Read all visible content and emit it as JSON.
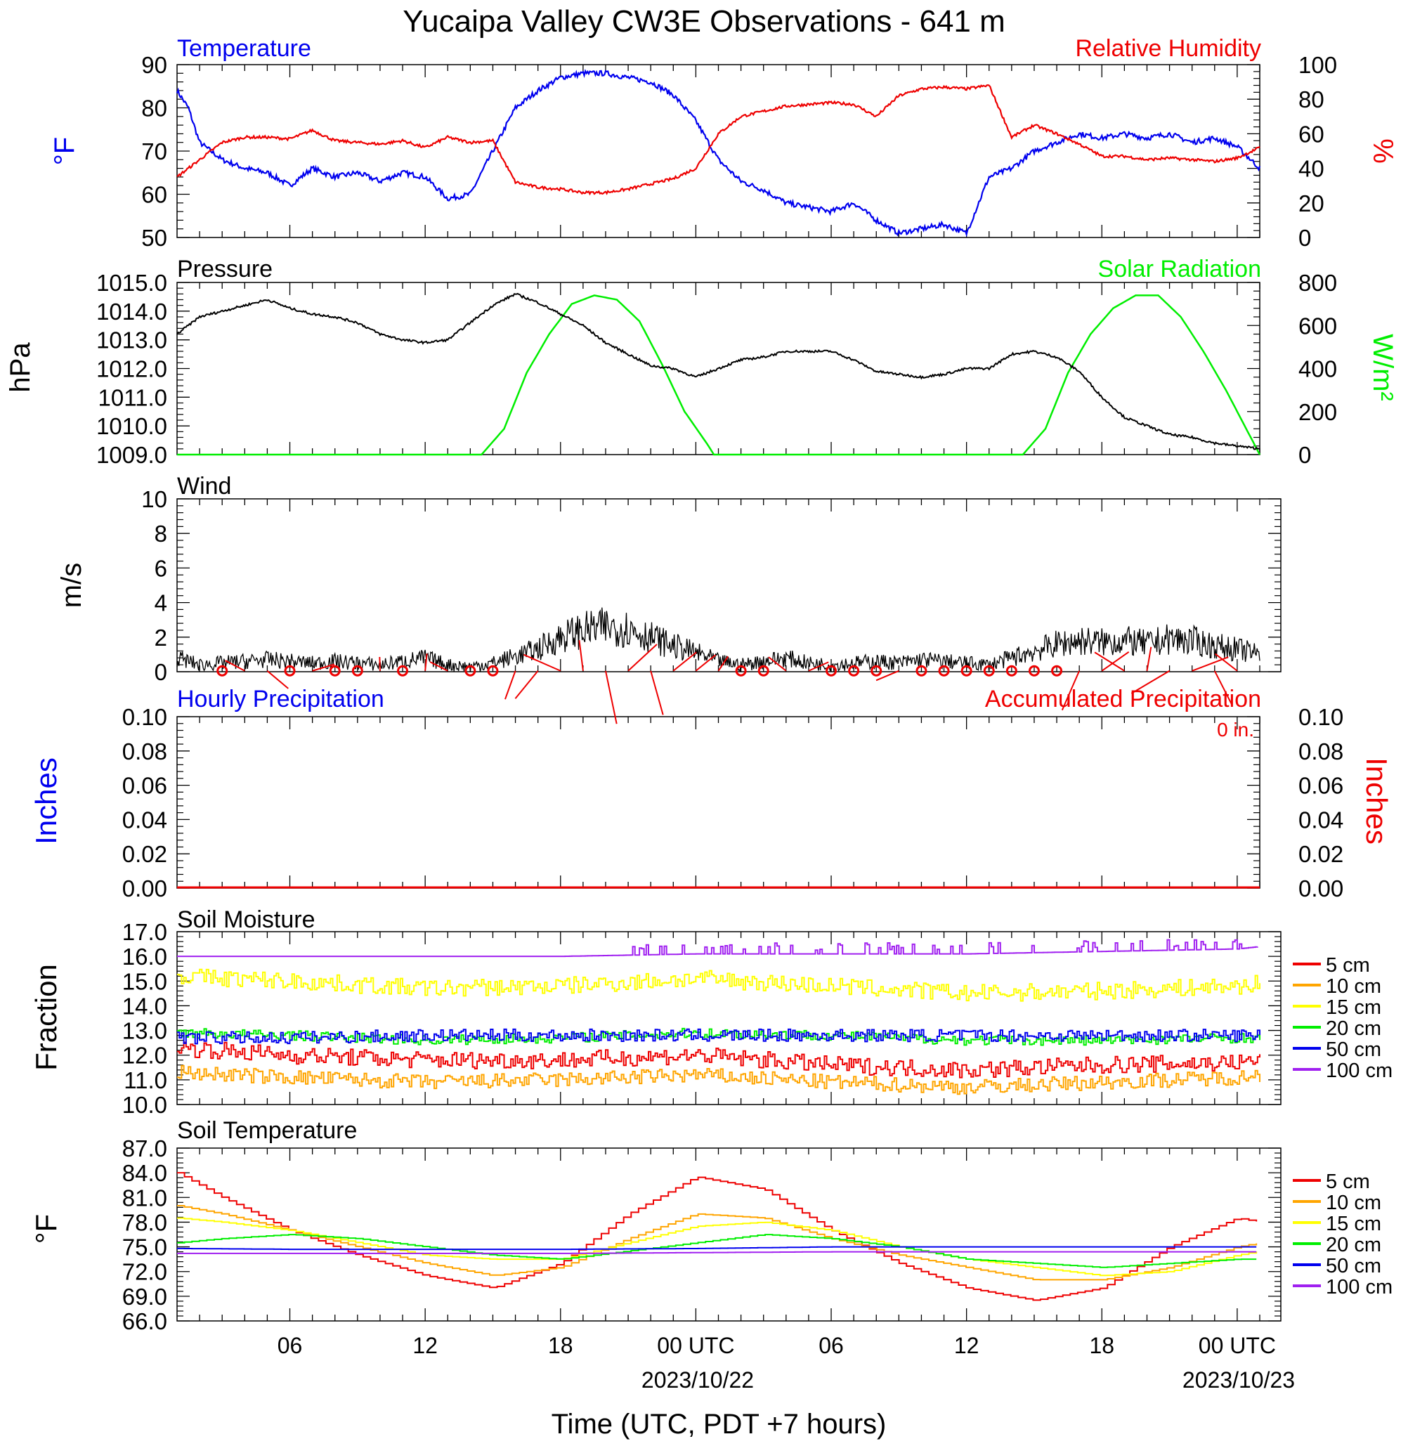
{
  "title": "Yucaipa Valley CW3E Observations - 641 m",
  "xaxis": {
    "title": "Time (UTC, PDT +7 hours)",
    "ticks": [
      "06",
      "12",
      "18",
      "00 UTC",
      "06",
      "12",
      "18",
      "00 UTC"
    ],
    "dates": [
      "2023/10/22",
      "2023/10/23"
    ]
  },
  "colors": {
    "blue": "#0000ee",
    "red": "#ee0000",
    "green": "#00ee00",
    "orange": "#ffa500",
    "yellow": "#ffff00",
    "purple": "#a020f0",
    "black": "#000000"
  },
  "panels": {
    "temp_rh": {
      "title_left": "Temperature",
      "title_right": "Relative Humidity",
      "ylabel_left": "°F",
      "ylabel_right": "%",
      "yticks_left": [
        "90",
        "80",
        "70",
        "60",
        "50"
      ],
      "yticks_right": [
        "100",
        "80",
        "60",
        "40",
        "20",
        "0"
      ]
    },
    "pressure": {
      "title_left": "Pressure",
      "title_right": "Solar Radiation",
      "ylabel_left": "hPa",
      "ylabel_right": "W/m²",
      "yticks_left": [
        "1015.0",
        "1014.0",
        "1013.0",
        "1012.0",
        "1011.0",
        "1010.0",
        "1009.0"
      ],
      "yticks_right": [
        "800",
        "600",
        "400",
        "200",
        "0"
      ]
    },
    "wind": {
      "title_left": "Wind",
      "ylabel_left": "m/s",
      "yticks_left": [
        "10",
        "8",
        "6",
        "4",
        "2",
        "0"
      ]
    },
    "precip": {
      "title_left": "Hourly Precipitation",
      "title_right": "Accumulated Precipitation",
      "accum_label": "0 in.",
      "ylabel_left": "Inches",
      "ylabel_right": "Inches",
      "yticks_left": [
        "0.10",
        "0.08",
        "0.06",
        "0.04",
        "0.02",
        "0.00"
      ],
      "yticks_right": [
        "0.10",
        "0.08",
        "0.06",
        "0.04",
        "0.02",
        "0.00"
      ]
    },
    "soil_moisture": {
      "title_left": "Soil Moisture",
      "ylabel_left": "Fraction",
      "yticks_left": [
        "17.0",
        "16.0",
        "15.0",
        "14.0",
        "13.0",
        "12.0",
        "11.0",
        "10.0"
      ],
      "legend": [
        "5 cm",
        "10 cm",
        "15 cm",
        "20 cm",
        "50 cm",
        "100 cm"
      ]
    },
    "soil_temp": {
      "title_left": "Soil Temperature",
      "ylabel_left": "°F",
      "yticks_left": [
        "87.0",
        "84.0",
        "81.0",
        "78.0",
        "75.0",
        "72.0",
        "69.0",
        "66.0"
      ],
      "legend": [
        "5 cm",
        "10 cm",
        "15 cm",
        "20 cm",
        "50 cm",
        "100 cm"
      ]
    }
  },
  "chart_data": [
    {
      "type": "line",
      "title": "Temperature / Relative Humidity",
      "x_unit": "hours since 2023/10/21 00 UTC",
      "xlim": [
        1.0,
        49.0
      ],
      "series": [
        {
          "name": "Temperature",
          "axis": "left",
          "unit": "°F",
          "ylim": [
            50,
            90
          ],
          "x": [
            1,
            1.5,
            2,
            3,
            4,
            5,
            6,
            7,
            8,
            9,
            10,
            11,
            12,
            13,
            14,
            15,
            16,
            17,
            18,
            19,
            20,
            21,
            22,
            23,
            24,
            25,
            26,
            27,
            28,
            29,
            30,
            31,
            32,
            33,
            34,
            35,
            36,
            37,
            38,
            39,
            40,
            41,
            42,
            43,
            44,
            45,
            46,
            47,
            48,
            49
          ],
          "y": [
            84,
            80,
            72,
            68,
            66,
            65,
            62,
            66,
            64,
            65,
            63,
            65,
            64,
            59,
            60,
            70,
            80,
            84,
            87,
            88,
            88,
            87,
            86,
            83,
            77,
            68,
            63,
            61,
            58,
            57,
            56,
            58,
            54,
            51,
            52,
            53,
            51,
            64,
            66,
            70,
            72,
            74,
            73,
            74,
            73,
            74,
            72,
            73,
            71,
            66
          ]
        },
        {
          "name": "Relative Humidity",
          "axis": "right",
          "unit": "%",
          "ylim": [
            0,
            100
          ],
          "x": [
            1,
            2,
            3,
            4,
            5,
            6,
            7,
            8,
            9,
            10,
            11,
            12,
            13,
            14,
            15,
            16,
            17,
            18,
            19,
            20,
            21,
            22,
            23,
            24,
            25,
            26,
            27,
            28,
            29,
            30,
            31,
            32,
            33,
            34,
            35,
            36,
            37,
            38,
            39,
            40,
            41,
            42,
            43,
            44,
            45,
            46,
            47,
            48,
            49
          ],
          "y": [
            35,
            45,
            55,
            58,
            58,
            57,
            62,
            56,
            55,
            54,
            56,
            52,
            58,
            55,
            56,
            32,
            29,
            28,
            26,
            26,
            28,
            31,
            34,
            40,
            60,
            70,
            73,
            76,
            77,
            78,
            77,
            70,
            82,
            86,
            87,
            86,
            88,
            58,
            65,
            60,
            54,
            47,
            47,
            45,
            46,
            45,
            44,
            46,
            52
          ]
        }
      ]
    },
    {
      "type": "line",
      "title": "Pressure / Solar Radiation",
      "x_unit": "hours since 2023/10/21 00 UTC",
      "xlim": [
        1.0,
        49.0
      ],
      "series": [
        {
          "name": "Pressure",
          "axis": "left",
          "unit": "hPa",
          "ylim": [
            1009,
            1015
          ],
          "x": [
            1,
            2,
            3,
            4,
            5,
            6,
            7,
            8,
            9,
            10,
            11,
            12,
            13,
            14,
            15,
            16,
            17,
            18,
            19,
            20,
            21,
            22,
            23,
            24,
            25,
            26,
            27,
            28,
            29,
            30,
            31,
            32,
            33,
            34,
            35,
            36,
            37,
            38,
            39,
            40,
            41,
            42,
            43,
            44,
            45,
            46,
            47,
            48,
            49
          ],
          "y": [
            1013.2,
            1013.8,
            1014.0,
            1014.2,
            1014.4,
            1014.1,
            1013.9,
            1013.8,
            1013.6,
            1013.2,
            1013.0,
            1012.9,
            1013.0,
            1013.6,
            1014.2,
            1014.6,
            1014.3,
            1013.9,
            1013.5,
            1012.9,
            1012.5,
            1012.1,
            1012.0,
            1011.7,
            1012.0,
            1012.3,
            1012.4,
            1012.6,
            1012.6,
            1012.6,
            1012.3,
            1011.9,
            1011.8,
            1011.7,
            1011.8,
            1012.0,
            1012.0,
            1012.5,
            1012.6,
            1012.4,
            1011.9,
            1011.0,
            1010.3,
            1010.0,
            1009.7,
            1009.6,
            1009.4,
            1009.3,
            1009.2
          ]
        },
        {
          "name": "Solar Radiation",
          "axis": "right",
          "unit": "W/m²",
          "ylim": [
            0,
            800
          ],
          "x": [
            1,
            14.5,
            15.5,
            16.5,
            17.5,
            18.5,
            19.5,
            20.5,
            21.5,
            22.5,
            23.5,
            24.5,
            24.8,
            25,
            38.5,
            39.5,
            40.5,
            41.5,
            42.5,
            43.5,
            44.5,
            45.5,
            46.5,
            47.5,
            48.5,
            49
          ],
          "y": [
            0,
            0,
            120,
            380,
            560,
            700,
            740,
            720,
            620,
            420,
            200,
            50,
            0,
            0,
            0,
            120,
            380,
            560,
            680,
            740,
            740,
            640,
            480,
            300,
            100,
            0
          ]
        }
      ]
    },
    {
      "type": "line",
      "title": "Wind",
      "x_unit": "hours since 2023/10/21 00 UTC",
      "xlim": [
        1.0,
        49.0
      ],
      "ylim": [
        0,
        10
      ],
      "series": [
        {
          "name": "Wind speed",
          "unit": "m/s",
          "x": [
            1,
            2,
            3,
            4,
            5,
            6,
            7,
            8,
            9,
            10,
            11,
            12,
            13,
            14,
            15,
            16,
            17,
            18,
            19,
            20,
            21,
            22,
            23,
            24,
            25,
            26,
            27,
            28,
            29,
            30,
            31,
            32,
            33,
            34,
            35,
            36,
            37,
            38,
            39,
            40,
            41,
            42,
            43,
            44,
            45,
            46,
            47,
            48,
            49
          ],
          "y": [
            0.8,
            0.4,
            0.5,
            0.6,
            0.7,
            0.6,
            0.5,
            0.6,
            0.5,
            0.4,
            0.6,
            0.8,
            0.4,
            0.3,
            0.5,
            0.9,
            1.3,
            2.0,
            2.4,
            2.6,
            2.5,
            2.0,
            1.5,
            1.1,
            0.6,
            0.4,
            0.6,
            0.8,
            0.5,
            0.4,
            0.5,
            0.6,
            0.5,
            0.7,
            0.6,
            0.5,
            0.4,
            0.8,
            1.2,
            1.6,
            1.8,
            1.7,
            1.8,
            1.6,
            1.9,
            1.8,
            1.5,
            1.3,
            1.0
          ]
        }
      ]
    },
    {
      "type": "bar",
      "title": "Hourly / Accumulated Precipitation",
      "x_unit": "hours since 2023/10/21 00 UTC",
      "xlim": [
        1.0,
        49.0
      ],
      "ylim": [
        0,
        0.1
      ],
      "series": [
        {
          "name": "Hourly Precipitation",
          "unit": "in",
          "values": []
        },
        {
          "name": "Accumulated Precipitation",
          "unit": "in",
          "total": 0
        }
      ]
    },
    {
      "type": "line",
      "title": "Soil Moisture",
      "x_unit": "hours since 2023/10/21 00 UTC",
      "xlim": [
        1.0,
        49.0
      ],
      "ylim": [
        10,
        17
      ],
      "series": [
        {
          "name": "5 cm",
          "x": [
            1,
            6,
            12,
            18,
            24,
            30,
            36,
            42,
            48,
            49
          ],
          "y": [
            12.3,
            12.0,
            11.8,
            11.8,
            12.0,
            11.6,
            11.4,
            11.6,
            11.7,
            11.8
          ]
        },
        {
          "name": "10 cm",
          "x": [
            1,
            6,
            12,
            18,
            24,
            30,
            36,
            42,
            48,
            49
          ],
          "y": [
            11.3,
            11.1,
            10.9,
            11.0,
            11.2,
            10.9,
            10.7,
            10.9,
            11.1,
            11.2
          ]
        },
        {
          "name": "15 cm",
          "x": [
            1,
            6,
            12,
            18,
            24,
            30,
            36,
            42,
            48,
            49
          ],
          "y": [
            15.2,
            15.0,
            14.7,
            14.8,
            15.1,
            14.8,
            14.5,
            14.6,
            14.8,
            14.9
          ]
        },
        {
          "name": "20 cm",
          "x": [
            1,
            6,
            12,
            18,
            24,
            30,
            36,
            42,
            48,
            49
          ],
          "y": [
            12.9,
            12.8,
            12.6,
            12.7,
            12.9,
            12.8,
            12.6,
            12.6,
            12.7,
            12.7
          ]
        },
        {
          "name": "50 cm",
          "x": [
            1,
            6,
            12,
            18,
            24,
            30,
            36,
            42,
            48,
            49
          ],
          "y": [
            12.7,
            12.7,
            12.8,
            12.8,
            12.8,
            12.8,
            12.8,
            12.8,
            12.8,
            12.8
          ]
        },
        {
          "name": "100 cm",
          "x": [
            1,
            6,
            12,
            18,
            24,
            30,
            36,
            42,
            48,
            49
          ],
          "y": [
            16.0,
            16.0,
            16.0,
            16.0,
            16.1,
            16.1,
            16.1,
            16.2,
            16.3,
            16.4
          ]
        }
      ]
    },
    {
      "type": "line",
      "title": "Soil Temperature",
      "x_unit": "hours since 2023/10/21 00 UTC",
      "xlim": [
        1.0,
        49.0
      ],
      "ylim": [
        66,
        87
      ],
      "series": [
        {
          "name": "5 cm",
          "x": [
            1,
            3,
            6,
            9,
            12,
            15,
            18,
            21,
            24,
            27,
            30,
            33,
            36,
            39,
            42,
            45,
            48,
            49
          ],
          "y": [
            84,
            81,
            77,
            74,
            71.5,
            70,
            73,
            79,
            83.5,
            82,
            77,
            73,
            70,
            68.5,
            70,
            75,
            78.5,
            78
          ]
        },
        {
          "name": "10 cm",
          "x": [
            1,
            3,
            6,
            9,
            12,
            15,
            18,
            21,
            24,
            27,
            30,
            33,
            36,
            39,
            42,
            45,
            48,
            49
          ],
          "y": [
            80,
            79,
            77,
            75,
            73,
            71.5,
            72.5,
            76,
            79,
            78.5,
            76,
            74,
            72.5,
            71,
            71,
            72.5,
            75,
            75.5
          ]
        },
        {
          "name": "15 cm",
          "x": [
            1,
            3,
            6,
            9,
            12,
            15,
            18,
            21,
            24,
            27,
            30,
            33,
            36,
            39,
            42,
            45,
            48,
            49
          ],
          "y": [
            78.5,
            78,
            77,
            75.5,
            74,
            73.5,
            73.5,
            75.5,
            77.5,
            78,
            77,
            75,
            73.5,
            72.5,
            71.5,
            72,
            74,
            74.5
          ]
        },
        {
          "name": "20 cm",
          "x": [
            1,
            3,
            6,
            9,
            12,
            15,
            18,
            21,
            24,
            27,
            30,
            33,
            36,
            39,
            42,
            45,
            48,
            49
          ],
          "y": [
            75.5,
            76,
            76.5,
            76,
            75,
            74,
            73.5,
            74.5,
            75.5,
            76.5,
            76,
            75,
            73.5,
            73,
            72.5,
            73,
            73.5,
            73.5
          ]
        },
        {
          "name": "50 cm",
          "x": [
            1,
            6,
            12,
            18,
            24,
            30,
            36,
            42,
            48,
            49
          ],
          "y": [
            74.8,
            74.7,
            74.7,
            74.7,
            74.8,
            75.0,
            75.0,
            75.0,
            75.0,
            75.0
          ]
        },
        {
          "name": "100 cm",
          "x": [
            1,
            6,
            12,
            18,
            24,
            30,
            36,
            42,
            48,
            49
          ],
          "y": [
            74.2,
            74.2,
            74.2,
            74.2,
            74.3,
            74.4,
            74.4,
            74.4,
            74.4,
            74.4
          ]
        }
      ]
    }
  ]
}
